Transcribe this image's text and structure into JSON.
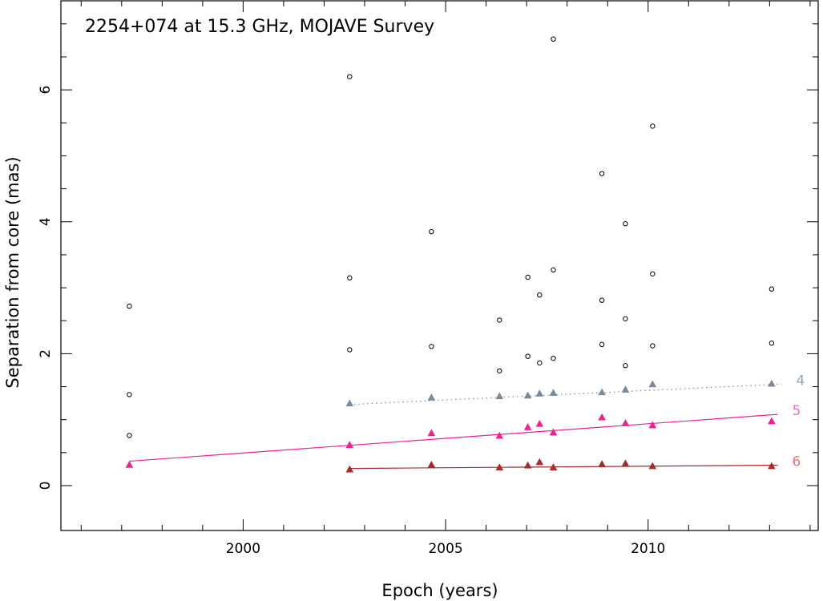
{
  "chart_data": {
    "type": "scatter",
    "title": "2254+074 at 15.3 GHz, MOJAVE Survey",
    "xlabel": "Epoch (years)",
    "ylabel": "Separation from core (mas)",
    "xlim": [
      1995.5,
      2014.2
    ],
    "ylim": [
      -0.68,
      7.35
    ],
    "xticks_major": [
      2000,
      2005,
      2010
    ],
    "xtick_labels": [
      "2000",
      "2005",
      "2010"
    ],
    "yticks_major": [
      0,
      2,
      4,
      6
    ],
    "ytick_labels": [
      "0",
      "2",
      "4",
      "6"
    ],
    "grid": false,
    "unassigned_components": [
      {
        "x": 1997.19,
        "y": 2.72
      },
      {
        "x": 1997.19,
        "y": 1.38
      },
      {
        "x": 1997.19,
        "y": 0.76
      },
      {
        "x": 2002.63,
        "y": 6.2
      },
      {
        "x": 2002.63,
        "y": 3.15
      },
      {
        "x": 2002.63,
        "y": 2.06
      },
      {
        "x": 2004.65,
        "y": 3.85
      },
      {
        "x": 2004.65,
        "y": 2.11
      },
      {
        "x": 2006.33,
        "y": 2.51
      },
      {
        "x": 2006.33,
        "y": 1.74
      },
      {
        "x": 2007.03,
        "y": 3.16
      },
      {
        "x": 2007.03,
        "y": 1.96
      },
      {
        "x": 2007.32,
        "y": 2.89
      },
      {
        "x": 2007.32,
        "y": 1.86
      },
      {
        "x": 2007.66,
        "y": 6.77
      },
      {
        "x": 2007.66,
        "y": 3.27
      },
      {
        "x": 2007.66,
        "y": 1.93
      },
      {
        "x": 2008.86,
        "y": 4.73
      },
      {
        "x": 2008.86,
        "y": 2.81
      },
      {
        "x": 2008.86,
        "y": 2.14
      },
      {
        "x": 2009.44,
        "y": 3.97
      },
      {
        "x": 2009.44,
        "y": 2.53
      },
      {
        "x": 2009.44,
        "y": 1.82
      },
      {
        "x": 2010.11,
        "y": 5.45
      },
      {
        "x": 2010.11,
        "y": 3.21
      },
      {
        "x": 2010.11,
        "y": 2.12
      },
      {
        "x": 2013.05,
        "y": 2.98
      },
      {
        "x": 2013.05,
        "y": 2.16
      }
    ],
    "series": [
      {
        "name": "4",
        "color": "#7b8a9b",
        "line_style": "dotted",
        "points": [
          {
            "x": 2002.63,
            "y": 1.24
          },
          {
            "x": 2004.65,
            "y": 1.33
          },
          {
            "x": 2006.33,
            "y": 1.35
          },
          {
            "x": 2007.03,
            "y": 1.36
          },
          {
            "x": 2007.32,
            "y": 1.39
          },
          {
            "x": 2007.66,
            "y": 1.4
          },
          {
            "x": 2008.86,
            "y": 1.41
          },
          {
            "x": 2009.44,
            "y": 1.45
          },
          {
            "x": 2010.11,
            "y": 1.53
          },
          {
            "x": 2013.05,
            "y": 1.54
          }
        ],
        "fit": {
          "x0": 2002.63,
          "y0": 1.23,
          "x1": 2013.3,
          "y1": 1.54
        }
      },
      {
        "name": "5",
        "color": "#f0208f",
        "line_style": "solid",
        "points": [
          {
            "x": 1997.19,
            "y": 0.31
          },
          {
            "x": 2002.63,
            "y": 0.61
          },
          {
            "x": 2004.65,
            "y": 0.79
          },
          {
            "x": 2006.33,
            "y": 0.75
          },
          {
            "x": 2007.03,
            "y": 0.88
          },
          {
            "x": 2007.32,
            "y": 0.93
          },
          {
            "x": 2007.66,
            "y": 0.8
          },
          {
            "x": 2008.86,
            "y": 1.03
          },
          {
            "x": 2009.44,
            "y": 0.94
          },
          {
            "x": 2010.11,
            "y": 0.91
          },
          {
            "x": 2013.05,
            "y": 0.97
          }
        ],
        "fit": {
          "x0": 1997.19,
          "y0": 0.37,
          "x1": 2013.2,
          "y1": 1.08
        }
      },
      {
        "name": "6",
        "color": "#a52a2a",
        "line_style": "solid",
        "points": [
          {
            "x": 2002.63,
            "y": 0.24
          },
          {
            "x": 2004.65,
            "y": 0.31
          },
          {
            "x": 2006.33,
            "y": 0.27
          },
          {
            "x": 2007.03,
            "y": 0.3
          },
          {
            "x": 2007.32,
            "y": 0.35
          },
          {
            "x": 2007.66,
            "y": 0.27
          },
          {
            "x": 2008.86,
            "y": 0.32
          },
          {
            "x": 2009.44,
            "y": 0.33
          },
          {
            "x": 2010.11,
            "y": 0.29
          },
          {
            "x": 2013.05,
            "y": 0.29
          }
        ],
        "fit": {
          "x0": 2002.63,
          "y0": 0.26,
          "x1": 2013.2,
          "y1": 0.31
        }
      }
    ],
    "series_label_colors": {
      "4": "#9aa5b1",
      "5": "#f070b8",
      "6": "#e07a7a"
    }
  }
}
